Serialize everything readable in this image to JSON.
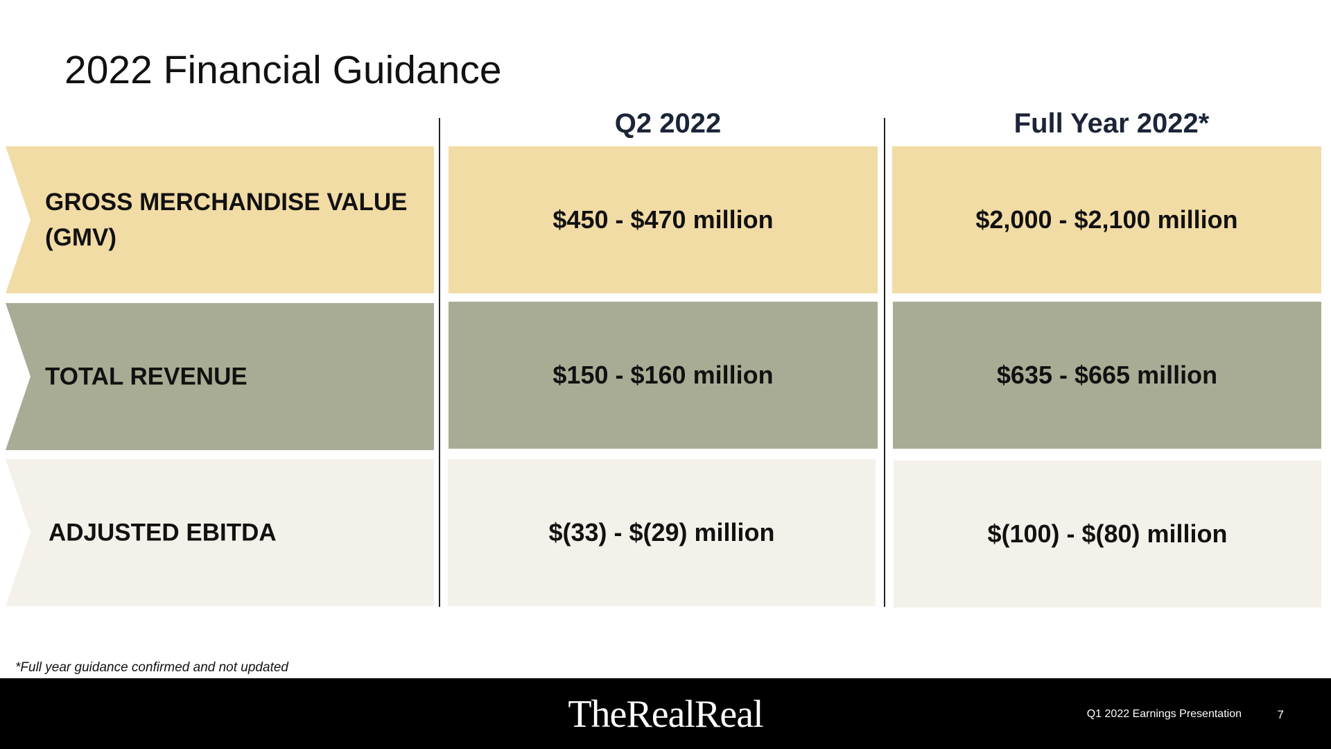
{
  "slide": {
    "title": "2022 Financial Guidance",
    "columns": [
      "Q2 2022",
      "Full Year 2022*"
    ],
    "rows": [
      {
        "label_line1": "GROSS MERCHANDISE VALUE",
        "label_line2": "(GMV)",
        "q2": "$450 - $470 million",
        "fy": "$2,000 - $2,100 million",
        "color": "#f2dca5"
      },
      {
        "label_line1": "TOTAL REVENUE",
        "label_line2": "",
        "q2": "$150 - $160 million",
        "fy": "$635 - $665 million",
        "color": "#a9ac94"
      },
      {
        "label_line1": "ADJUSTED EBITDA",
        "label_line2": "",
        "q2": "$(33) - $(29) million",
        "fy": "$(100) - $(80) million",
        "color": "#f3f1e9"
      }
    ],
    "footnote": "*Full year guidance confirmed and not updated"
  },
  "footer": {
    "logo": "TheRealReal",
    "presentation": "Q1 2022 Earnings Presentation",
    "page": "7"
  }
}
